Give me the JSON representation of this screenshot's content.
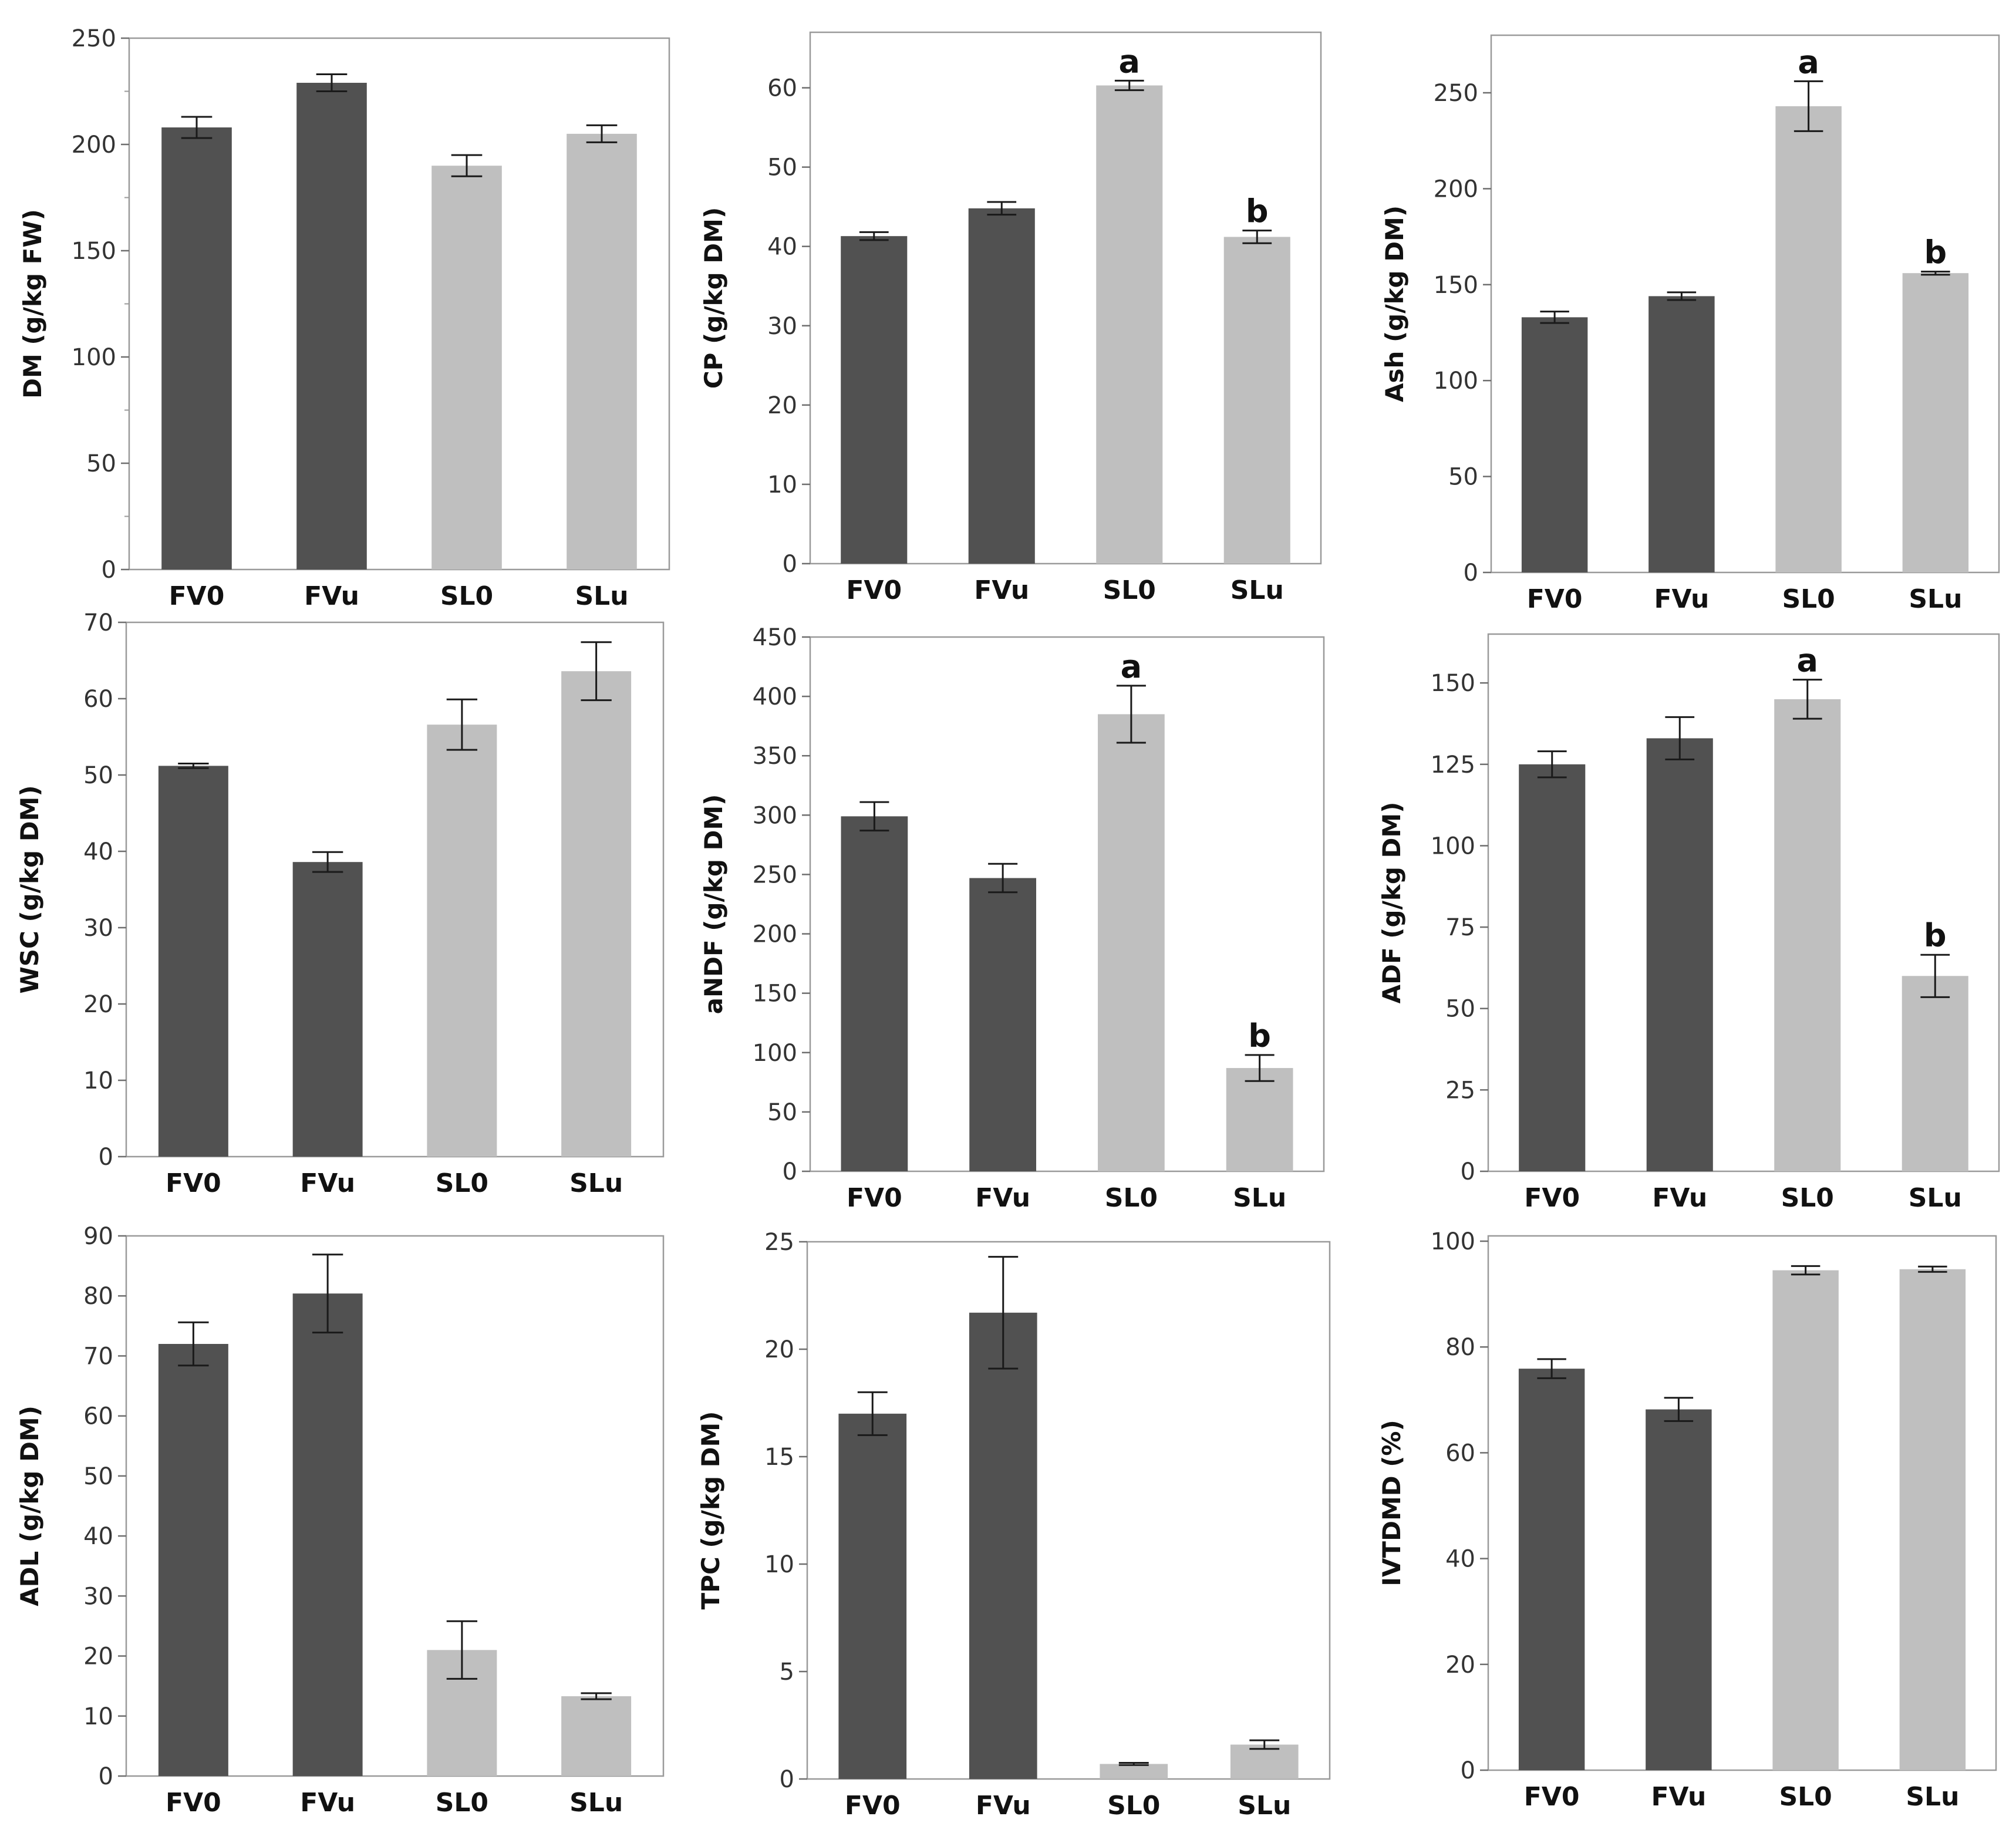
{
  "chart_data": [
    {
      "type": "bar",
      "ylabel": "DM (g/kg FW)",
      "categories": [
        "FV0",
        "FVu",
        "SL0",
        "SLu"
      ],
      "values": [
        208,
        229,
        190,
        205
      ],
      "errors": [
        5,
        4,
        5,
        4
      ],
      "letters": [
        "",
        "",
        "",
        ""
      ],
      "ylim": [
        0,
        250
      ],
      "yticks": [
        0,
        50,
        100,
        150,
        200,
        250
      ],
      "minor_ticks": true,
      "colors": [
        "#515151",
        "#515151",
        "#bfbfbf",
        "#bfbfbf"
      ]
    },
    {
      "type": "bar",
      "ylabel": "CP (g/kg DM)",
      "categories": [
        "FV0",
        "FVu",
        "SL0",
        "SLu"
      ],
      "values": [
        41.3,
        44.8,
        60.3,
        41.2
      ],
      "errors": [
        0.5,
        0.8,
        0.6,
        0.8
      ],
      "letters": [
        "",
        "",
        "a",
        "b"
      ],
      "ylim": [
        0,
        67
      ],
      "yticks": [
        0,
        10,
        20,
        30,
        40,
        50,
        60
      ],
      "minor_ticks": false,
      "colors": [
        "#515151",
        "#515151",
        "#bfbfbf",
        "#bfbfbf"
      ]
    },
    {
      "type": "bar",
      "ylabel": "Ash (g/kg DM)",
      "categories": [
        "FV0",
        "FVu",
        "SL0",
        "SLu"
      ],
      "values": [
        133,
        144,
        243,
        156
      ],
      "errors": [
        3,
        2,
        13,
        0.8
      ],
      "letters": [
        "",
        "",
        "a",
        "b"
      ],
      "ylim": [
        0,
        280
      ],
      "yticks": [
        0,
        50,
        100,
        150,
        200,
        250
      ],
      "minor_ticks": false,
      "colors": [
        "#515151",
        "#515151",
        "#bfbfbf",
        "#bfbfbf"
      ]
    },
    {
      "type": "bar",
      "ylabel": "WSC (g/kg DM)",
      "categories": [
        "FV0",
        "FVu",
        "SL0",
        "SLu"
      ],
      "values": [
        51.2,
        38.6,
        56.6,
        63.6
      ],
      "errors": [
        0.3,
        1.3,
        3.3,
        3.8
      ],
      "letters": [
        "",
        "",
        "",
        ""
      ],
      "ylim": [
        0,
        70
      ],
      "yticks": [
        0,
        10,
        20,
        30,
        40,
        50,
        60,
        70
      ],
      "minor_ticks": false,
      "colors": [
        "#515151",
        "#515151",
        "#bfbfbf",
        "#bfbfbf"
      ]
    },
    {
      "type": "bar",
      "ylabel": "aNDF (g/kg DM)",
      "categories": [
        "FV0",
        "FVu",
        "SL0",
        "SLu"
      ],
      "values": [
        299,
        247,
        385,
        87
      ],
      "errors": [
        12,
        12,
        24,
        11
      ],
      "letters": [
        "",
        "",
        "a",
        "b"
      ],
      "ylim": [
        0,
        450
      ],
      "yticks": [
        0,
        50,
        100,
        150,
        200,
        250,
        300,
        350,
        400,
        450
      ],
      "minor_ticks": false,
      "colors": [
        "#515151",
        "#515151",
        "#bfbfbf",
        "#bfbfbf"
      ]
    },
    {
      "type": "bar",
      "ylabel": "ADF (g/kg DM)",
      "categories": [
        "FV0",
        "FVu",
        "SL0",
        "SLu"
      ],
      "values": [
        125,
        133,
        145,
        60
      ],
      "errors": [
        4,
        6.5,
        6,
        6.5
      ],
      "letters": [
        "",
        "",
        "a",
        "b"
      ],
      "ylim": [
        0,
        165
      ],
      "yticks": [
        0,
        25,
        50,
        75,
        100,
        125,
        150
      ],
      "minor_ticks": false,
      "colors": [
        "#515151",
        "#515151",
        "#bfbfbf",
        "#bfbfbf"
      ]
    },
    {
      "type": "bar",
      "ylabel": "ADL (g/kg DM)",
      "categories": [
        "FV0",
        "FVu",
        "SL0",
        "SLu"
      ],
      "values": [
        72,
        80.4,
        21,
        13.3
      ],
      "errors": [
        3.6,
        6.5,
        4.8,
        0.5
      ],
      "letters": [
        "",
        "",
        "",
        ""
      ],
      "ylim": [
        0,
        90
      ],
      "yticks": [
        0,
        10,
        20,
        30,
        40,
        50,
        60,
        70,
        80,
        90
      ],
      "minor_ticks": false,
      "colors": [
        "#515151",
        "#515151",
        "#bfbfbf",
        "#bfbfbf"
      ]
    },
    {
      "type": "bar",
      "ylabel": "TPC (g/kg DM)",
      "categories": [
        "FV0",
        "FVu",
        "SL0",
        "SLu"
      ],
      "values": [
        17,
        21.7,
        0.7,
        1.6
      ],
      "errors": [
        1,
        2.6,
        0.05,
        0.2
      ],
      "letters": [
        "",
        "",
        "",
        ""
      ],
      "ylim": [
        0,
        25
      ],
      "yticks": [
        0,
        5,
        10,
        15,
        20,
        25
      ],
      "minor_ticks": false,
      "colors": [
        "#515151",
        "#515151",
        "#bfbfbf",
        "#bfbfbf"
      ]
    },
    {
      "type": "bar",
      "ylabel": "IVTDMD (%)",
      "categories": [
        "FV0",
        "FVu",
        "SL0",
        "SLu"
      ],
      "values": [
        75.9,
        68.2,
        94.5,
        94.7
      ],
      "errors": [
        1.8,
        2.2,
        0.8,
        0.5
      ],
      "letters": [
        "",
        "",
        "",
        ""
      ],
      "ylim": [
        0,
        101
      ],
      "yticks": [
        0,
        20,
        40,
        60,
        80,
        100
      ],
      "minor_ticks": false,
      "colors": [
        "#515151",
        "#515151",
        "#bfbfbf",
        "#bfbfbf"
      ]
    }
  ]
}
